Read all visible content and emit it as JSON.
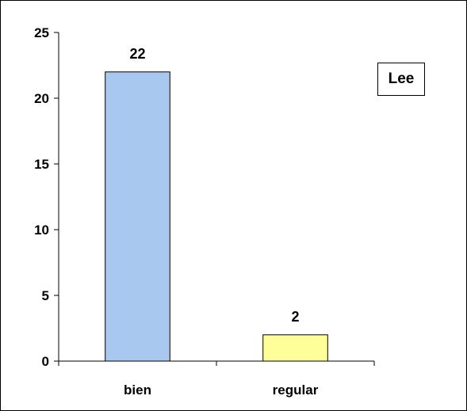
{
  "chart_data": {
    "type": "bar",
    "categories": [
      "bien",
      "regular"
    ],
    "values": [
      22,
      2
    ],
    "data_labels": [
      "22",
      "2"
    ],
    "colors": [
      "#a9c8ef",
      "#ffff99"
    ],
    "title": "",
    "xlabel": "",
    "ylabel": "",
    "ylim": [
      0,
      25
    ],
    "yticks": [
      0,
      5,
      10,
      15,
      20,
      25
    ],
    "grid": false,
    "legend": {
      "text": "Lee",
      "placement": "top-right"
    }
  }
}
